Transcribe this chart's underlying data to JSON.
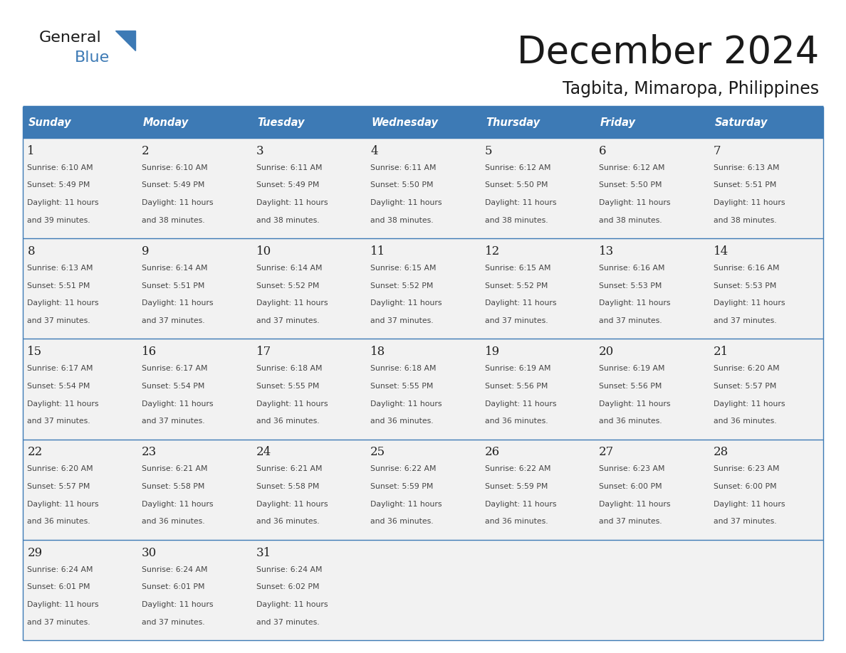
{
  "title": "December 2024",
  "subtitle": "Tagbita, Mimaropa, Philippines",
  "header_color": "#3d7ab5",
  "header_text_color": "#ffffff",
  "border_color": "#3d7ab5",
  "cell_bg_color": "#f2f2f2",
  "text_color": "#333333",
  "days_of_week": [
    "Sunday",
    "Monday",
    "Tuesday",
    "Wednesday",
    "Thursday",
    "Friday",
    "Saturday"
  ],
  "weeks": [
    [
      {
        "day": 1,
        "sunrise": "6:10 AM",
        "sunset": "5:49 PM",
        "daylight": "11 hours and 39 minutes."
      },
      {
        "day": 2,
        "sunrise": "6:10 AM",
        "sunset": "5:49 PM",
        "daylight": "11 hours and 38 minutes."
      },
      {
        "day": 3,
        "sunrise": "6:11 AM",
        "sunset": "5:49 PM",
        "daylight": "11 hours and 38 minutes."
      },
      {
        "day": 4,
        "sunrise": "6:11 AM",
        "sunset": "5:50 PM",
        "daylight": "11 hours and 38 minutes."
      },
      {
        "day": 5,
        "sunrise": "6:12 AM",
        "sunset": "5:50 PM",
        "daylight": "11 hours and 38 minutes."
      },
      {
        "day": 6,
        "sunrise": "6:12 AM",
        "sunset": "5:50 PM",
        "daylight": "11 hours and 38 minutes."
      },
      {
        "day": 7,
        "sunrise": "6:13 AM",
        "sunset": "5:51 PM",
        "daylight": "11 hours and 38 minutes."
      }
    ],
    [
      {
        "day": 8,
        "sunrise": "6:13 AM",
        "sunset": "5:51 PM",
        "daylight": "11 hours and 37 minutes."
      },
      {
        "day": 9,
        "sunrise": "6:14 AM",
        "sunset": "5:51 PM",
        "daylight": "11 hours and 37 minutes."
      },
      {
        "day": 10,
        "sunrise": "6:14 AM",
        "sunset": "5:52 PM",
        "daylight": "11 hours and 37 minutes."
      },
      {
        "day": 11,
        "sunrise": "6:15 AM",
        "sunset": "5:52 PM",
        "daylight": "11 hours and 37 minutes."
      },
      {
        "day": 12,
        "sunrise": "6:15 AM",
        "sunset": "5:52 PM",
        "daylight": "11 hours and 37 minutes."
      },
      {
        "day": 13,
        "sunrise": "6:16 AM",
        "sunset": "5:53 PM",
        "daylight": "11 hours and 37 minutes."
      },
      {
        "day": 14,
        "sunrise": "6:16 AM",
        "sunset": "5:53 PM",
        "daylight": "11 hours and 37 minutes."
      }
    ],
    [
      {
        "day": 15,
        "sunrise": "6:17 AM",
        "sunset": "5:54 PM",
        "daylight": "11 hours and 37 minutes."
      },
      {
        "day": 16,
        "sunrise": "6:17 AM",
        "sunset": "5:54 PM",
        "daylight": "11 hours and 37 minutes."
      },
      {
        "day": 17,
        "sunrise": "6:18 AM",
        "sunset": "5:55 PM",
        "daylight": "11 hours and 36 minutes."
      },
      {
        "day": 18,
        "sunrise": "6:18 AM",
        "sunset": "5:55 PM",
        "daylight": "11 hours and 36 minutes."
      },
      {
        "day": 19,
        "sunrise": "6:19 AM",
        "sunset": "5:56 PM",
        "daylight": "11 hours and 36 minutes."
      },
      {
        "day": 20,
        "sunrise": "6:19 AM",
        "sunset": "5:56 PM",
        "daylight": "11 hours and 36 minutes."
      },
      {
        "day": 21,
        "sunrise": "6:20 AM",
        "sunset": "5:57 PM",
        "daylight": "11 hours and 36 minutes."
      }
    ],
    [
      {
        "day": 22,
        "sunrise": "6:20 AM",
        "sunset": "5:57 PM",
        "daylight": "11 hours and 36 minutes."
      },
      {
        "day": 23,
        "sunrise": "6:21 AM",
        "sunset": "5:58 PM",
        "daylight": "11 hours and 36 minutes."
      },
      {
        "day": 24,
        "sunrise": "6:21 AM",
        "sunset": "5:58 PM",
        "daylight": "11 hours and 36 minutes."
      },
      {
        "day": 25,
        "sunrise": "6:22 AM",
        "sunset": "5:59 PM",
        "daylight": "11 hours and 36 minutes."
      },
      {
        "day": 26,
        "sunrise": "6:22 AM",
        "sunset": "5:59 PM",
        "daylight": "11 hours and 36 minutes."
      },
      {
        "day": 27,
        "sunrise": "6:23 AM",
        "sunset": "6:00 PM",
        "daylight": "11 hours and 37 minutes."
      },
      {
        "day": 28,
        "sunrise": "6:23 AM",
        "sunset": "6:00 PM",
        "daylight": "11 hours and 37 minutes."
      }
    ],
    [
      {
        "day": 29,
        "sunrise": "6:24 AM",
        "sunset": "6:01 PM",
        "daylight": "11 hours and 37 minutes."
      },
      {
        "day": 30,
        "sunrise": "6:24 AM",
        "sunset": "6:01 PM",
        "daylight": "11 hours and 37 minutes."
      },
      {
        "day": 31,
        "sunrise": "6:24 AM",
        "sunset": "6:02 PM",
        "daylight": "11 hours and 37 minutes."
      },
      null,
      null,
      null,
      null
    ]
  ]
}
